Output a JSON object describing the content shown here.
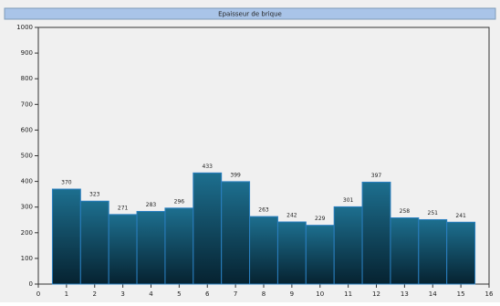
{
  "chart_data": {
    "type": "bar",
    "title": "Epaisseur de brique",
    "x": [
      1,
      2,
      3,
      4,
      5,
      6,
      7,
      8,
      9,
      10,
      11,
      12,
      13,
      14,
      15
    ],
    "values": [
      370,
      323,
      271,
      283,
      296,
      433,
      399,
      263,
      242,
      229,
      301,
      397,
      258,
      251,
      241
    ],
    "color": "#0f4d66",
    "xlim": [
      0,
      16
    ],
    "xticks": [
      0,
      1,
      2,
      3,
      4,
      5,
      6,
      7,
      8,
      9,
      10,
      11,
      12,
      13,
      14,
      15,
      16
    ],
    "ylim": [
      0,
      1000
    ],
    "yticks": [
      0,
      100,
      200,
      300,
      400,
      500,
      600,
      700,
      800,
      900,
      1000
    ]
  }
}
